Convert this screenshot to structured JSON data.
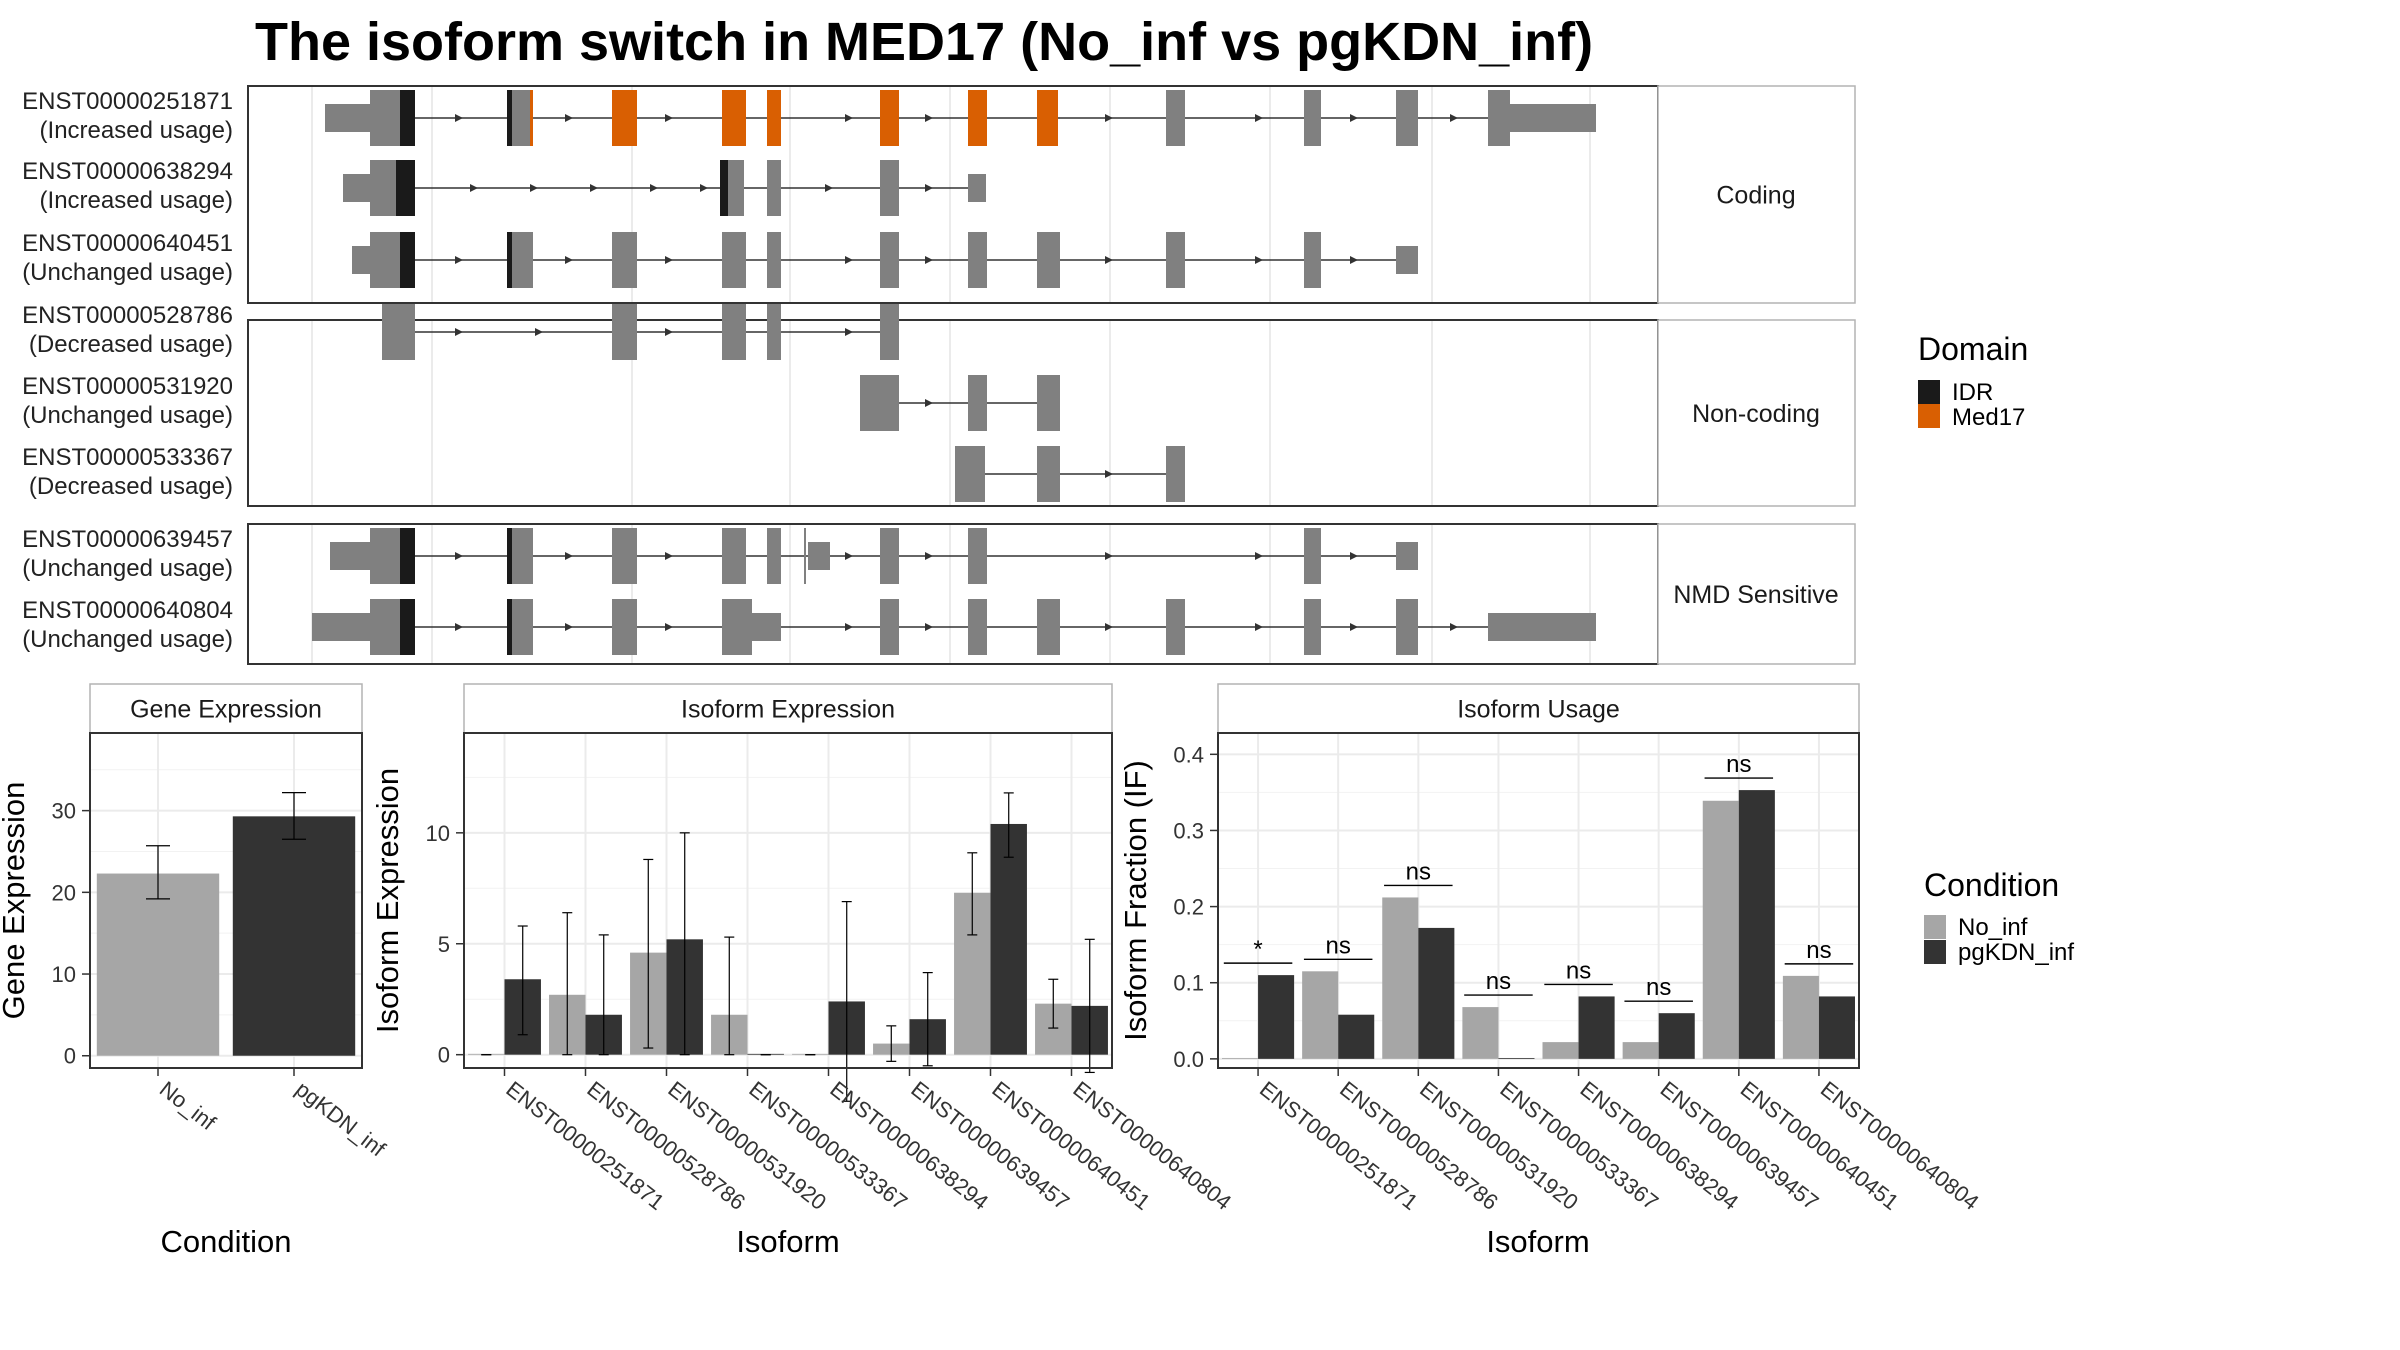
{
  "title": "The isoform switch in MED17 (No_inf vs pgKDN_inf)",
  "colors": {
    "exon": "#808080",
    "idr": "#1a1a1a",
    "med17": "#d95f02",
    "no_inf": "#a6a6a6",
    "pgkdn_inf": "#333333",
    "grid": "#ebebeb",
    "strip_fill": "#ffffff",
    "border": "#333333"
  },
  "gene_model": {
    "panels": [
      {
        "label": "Coding",
        "transcripts": [
          {
            "id": "ENST00000251871",
            "usage": "(Increased usage)",
            "exons": [
              [
                325,
                400,
                "exon",
                0.5
              ],
              [
                370,
                400,
                "exon",
                1
              ],
              [
                400,
                415,
                "idr",
                1
              ],
              [
                507,
                512,
                "idr",
                1
              ],
              [
                512,
                530,
                "exon",
                1
              ],
              [
                530,
                533,
                "med17",
                1
              ],
              [
                612,
                637,
                "med17",
                1
              ],
              [
                722,
                746,
                "med17",
                1
              ],
              [
                767,
                781,
                "med17",
                1
              ],
              [
                880,
                899,
                "med17",
                1
              ],
              [
                968,
                987,
                "med17",
                1
              ],
              [
                1037,
                1058,
                "med17",
                1
              ],
              [
                1166,
                1185,
                "exon",
                1
              ],
              [
                1304,
                1321,
                "exon",
                1
              ],
              [
                1396,
                1418,
                "exon",
                1
              ],
              [
                1488,
                1510,
                "exon",
                1
              ],
              [
                1510,
                1596,
                "exon",
                0.5
              ]
            ],
            "arrows": [
              460,
              570,
              670,
              850,
              930,
              1110,
              1260,
              1355,
              1455,
              1535
            ]
          },
          {
            "id": "ENST00000638294",
            "usage": "(Increased usage)",
            "exons": [
              [
                343,
                370,
                "exon",
                0.5
              ],
              [
                370,
                396,
                "exon",
                1
              ],
              [
                396,
                415,
                "idr",
                1
              ],
              [
                720,
                728,
                "idr",
                1
              ],
              [
                728,
                744,
                "exon",
                1
              ],
              [
                767,
                781,
                "exon",
                1
              ],
              [
                880,
                899,
                "exon",
                1
              ],
              [
                968,
                986,
                "exon",
                0.5
              ]
            ],
            "arrows": [
              475,
              535,
              595,
              655,
              705,
              830,
              930
            ]
          },
          {
            "id": "ENST00000640451",
            "usage": "(Unchanged usage)",
            "exons": [
              [
                352,
                370,
                "exon",
                0.5
              ],
              [
                370,
                400,
                "exon",
                1
              ],
              [
                400,
                415,
                "idr",
                1
              ],
              [
                507,
                512,
                "idr",
                1
              ],
              [
                512,
                533,
                "exon",
                1
              ],
              [
                612,
                637,
                "exon",
                1
              ],
              [
                722,
                746,
                "exon",
                1
              ],
              [
                767,
                781,
                "exon",
                1
              ],
              [
                880,
                899,
                "exon",
                1
              ],
              [
                968,
                987,
                "exon",
                1
              ],
              [
                1037,
                1060,
                "exon",
                1
              ],
              [
                1166,
                1185,
                "exon",
                1
              ],
              [
                1304,
                1321,
                "exon",
                1
              ],
              [
                1396,
                1418,
                "exon",
                0.5
              ]
            ],
            "arrows": [
              460,
              570,
              670,
              850,
              930,
              1110,
              1260,
              1355
            ]
          }
        ]
      },
      {
        "label": "Non-coding",
        "transcripts": [
          {
            "id": "ENST00000528786",
            "usage": "(Decreased usage)",
            "exons": [
              [
                382,
                415,
                "exon",
                1
              ],
              [
                612,
                637,
                "exon",
                1
              ],
              [
                722,
                746,
                "exon",
                1
              ],
              [
                767,
                781,
                "exon",
                1
              ],
              [
                880,
                899,
                "exon",
                1
              ]
            ],
            "arrows": [
              460,
              540,
              670,
              850
            ]
          },
          {
            "id": "ENST00000531920",
            "usage": "(Unchanged usage)",
            "exons": [
              [
                860,
                899,
                "exon",
                1
              ],
              [
                968,
                987,
                "exon",
                1
              ],
              [
                1037,
                1060,
                "exon",
                1
              ]
            ],
            "arrows": [
              930
            ]
          },
          {
            "id": "ENST00000533367",
            "usage": "(Decreased usage)",
            "exons": [
              [
                955,
                985,
                "exon",
                1
              ],
              [
                1037,
                1060,
                "exon",
                1
              ],
              [
                1166,
                1185,
                "exon",
                1
              ]
            ],
            "arrows": [
              1110
            ]
          }
        ]
      },
      {
        "label": "NMD Sensitive",
        "transcripts": [
          {
            "id": "ENST00000639457",
            "usage": "(Unchanged usage)",
            "exons": [
              [
                330,
                370,
                "exon",
                0.5
              ],
              [
                370,
                400,
                "exon",
                1
              ],
              [
                400,
                415,
                "idr",
                1
              ],
              [
                507,
                512,
                "idr",
                1
              ],
              [
                512,
                533,
                "exon",
                1
              ],
              [
                612,
                637,
                "exon",
                1
              ],
              [
                722,
                746,
                "exon",
                1
              ],
              [
                767,
                781,
                "exon",
                1
              ],
              [
                804,
                806,
                "exon",
                1
              ],
              [
                808,
                830,
                "exon",
                0.5
              ],
              [
                880,
                899,
                "exon",
                1
              ],
              [
                968,
                987,
                "exon",
                1
              ],
              [
                1304,
                1321,
                "exon",
                1
              ],
              [
                1396,
                1418,
                "exon",
                0.5
              ]
            ],
            "arrows": [
              460,
              570,
              670,
              850,
              930,
              1110,
              1260,
              1355
            ]
          },
          {
            "id": "ENST00000640804",
            "usage": "(Unchanged usage)",
            "exons": [
              [
                312,
                370,
                "exon",
                0.5
              ],
              [
                370,
                400,
                "exon",
                1
              ],
              [
                400,
                415,
                "idr",
                1
              ],
              [
                507,
                512,
                "idr",
                1
              ],
              [
                512,
                533,
                "exon",
                1
              ],
              [
                612,
                637,
                "exon",
                1
              ],
              [
                722,
                752,
                "exon",
                1
              ],
              [
                752,
                781,
                "exon",
                0.5
              ],
              [
                880,
                899,
                "exon",
                1
              ],
              [
                968,
                987,
                "exon",
                1
              ],
              [
                1037,
                1060,
                "exon",
                1
              ],
              [
                1166,
                1185,
                "exon",
                1
              ],
              [
                1304,
                1321,
                "exon",
                1
              ],
              [
                1396,
                1418,
                "exon",
                1
              ],
              [
                1488,
                1596,
                "exon",
                0.5
              ]
            ],
            "arrows": [
              460,
              570,
              670,
              850,
              930,
              1110,
              1260,
              1355,
              1455
            ]
          }
        ]
      }
    ],
    "legend": {
      "title": "Domain",
      "items": [
        {
          "label": "IDR",
          "color": "#1a1a1a"
        },
        {
          "label": "Med17",
          "color": "#d95f02"
        }
      ]
    }
  },
  "chart_data": [
    {
      "type": "bar",
      "panel_title": "Gene Expression",
      "xlabel": "Condition",
      "ylabel": "Gene Expression",
      "categories": [
        "No_inf",
        "pgKDN_inf"
      ],
      "values": [
        22.3,
        29.3
      ],
      "error": [
        [
          19.2,
          25.7
        ],
        [
          26.5,
          32.2
        ]
      ],
      "ylim": [
        -1.5,
        39.5
      ],
      "yticks": [
        0,
        10,
        20,
        30
      ],
      "grid": true
    },
    {
      "type": "bar",
      "panel_title": "Isoform Expression",
      "xlabel": "Isoform",
      "ylabel": "Isoform Expression",
      "categories": [
        "ENST00000251871",
        "ENST00000528786",
        "ENST00000531920",
        "ENST00000533367",
        "ENST00000638294",
        "ENST00000639457",
        "ENST00000640451",
        "ENST00000640804"
      ],
      "series": [
        {
          "name": "No_inf",
          "values": [
            0.0,
            2.7,
            4.6,
            1.8,
            0.0,
            0.5,
            7.3,
            2.3
          ],
          "error": [
            [
              0,
              0
            ],
            [
              0,
              6.4
            ],
            [
              0.3,
              8.8
            ],
            [
              0,
              5.3
            ],
            [
              0,
              0
            ],
            [
              -0.3,
              1.3
            ],
            [
              5.4,
              9.1
            ],
            [
              1.2,
              3.4
            ]
          ]
        },
        {
          "name": "pgKDN_inf",
          "values": [
            3.4,
            1.8,
            5.2,
            0.0,
            2.4,
            1.6,
            10.4,
            2.2
          ],
          "error": [
            [
              0.9,
              5.8
            ],
            [
              0,
              5.4
            ],
            [
              0,
              10.0
            ],
            [
              0,
              0
            ],
            [
              -2.1,
              6.9
            ],
            [
              -0.5,
              3.7
            ],
            [
              8.9,
              11.8
            ],
            [
              -0.8,
              5.2
            ]
          ]
        }
      ],
      "ylim": [
        -0.6,
        14.5
      ],
      "yticks": [
        0,
        5,
        10
      ],
      "grid": true
    },
    {
      "type": "bar",
      "panel_title": "Isoform Usage",
      "xlabel": "Isoform",
      "ylabel": "Isoform Fraction (IF)",
      "categories": [
        "ENST00000251871",
        "ENST00000528786",
        "ENST00000531920",
        "ENST00000533367",
        "ENST00000638294",
        "ENST00000639457",
        "ENST00000640451",
        "ENST00000640804"
      ],
      "series": [
        {
          "name": "No_inf",
          "values": [
            0.0,
            0.115,
            0.212,
            0.068,
            0.022,
            0.022,
            0.339,
            0.109
          ]
        },
        {
          "name": "pgKDN_inf",
          "values": [
            0.11,
            0.058,
            0.172,
            0.0,
            0.082,
            0.06,
            0.353,
            0.082
          ]
        }
      ],
      "significance": [
        "*",
        "ns",
        "ns",
        "ns",
        "ns",
        "ns",
        "ns",
        "ns"
      ],
      "ylim": [
        -0.012,
        0.428
      ],
      "yticks": [
        0.0,
        0.1,
        0.2,
        0.3,
        0.4
      ],
      "ytick_labels": [
        "0.0",
        "0.1",
        "0.2",
        "0.3",
        "0.4"
      ],
      "grid": true,
      "legend": {
        "title": "Condition",
        "placement": "right",
        "items": [
          "No_inf",
          "pgKDN_inf"
        ]
      }
    }
  ]
}
